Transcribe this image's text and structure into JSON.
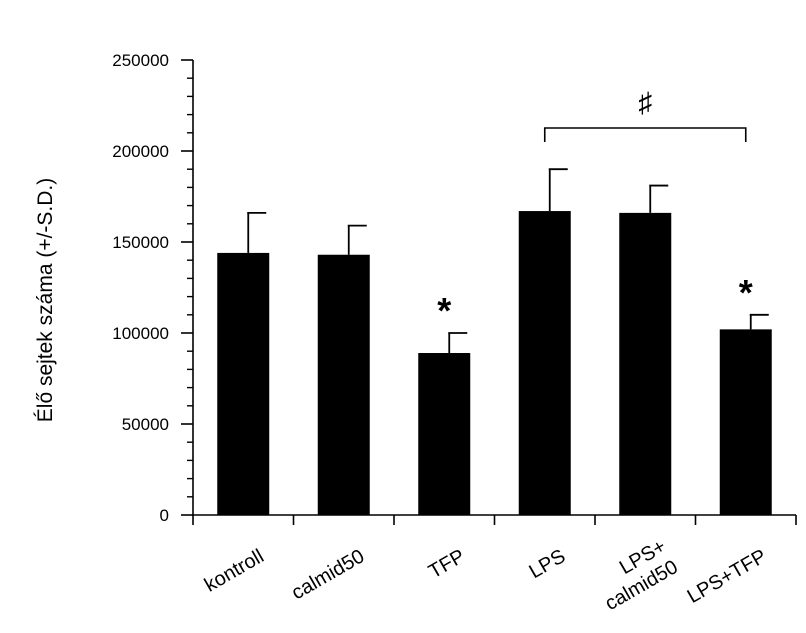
{
  "chart_data": {
    "type": "bar",
    "title": "",
    "xlabel": "",
    "ylabel": "Élő sejtek száma (+/-S.D.)",
    "ylim": [
      0,
      250000
    ],
    "yticks": [
      0,
      50000,
      100000,
      150000,
      200000,
      250000
    ],
    "categories": [
      [
        "kontroll"
      ],
      [
        "calmid50"
      ],
      [
        "TFP"
      ],
      [
        "LPS"
      ],
      [
        "LPS+",
        "calmid50"
      ],
      [
        "LPS+TFP"
      ]
    ],
    "values": [
      144000,
      143000,
      89000,
      167000,
      166000,
      102000
    ],
    "errors": [
      22000,
      16000,
      11000,
      23000,
      15000,
      8000
    ],
    "significance": {
      "stars": [
        {
          "index": 2,
          "label": "*"
        },
        {
          "index": 5,
          "label": "*"
        }
      ],
      "bracket": {
        "from": 3,
        "to": 5,
        "label": "♯"
      }
    },
    "grid": false,
    "legend": "none",
    "colors": {
      "bar": "#000000",
      "axis": "#000000",
      "background": "#ffffff"
    }
  }
}
